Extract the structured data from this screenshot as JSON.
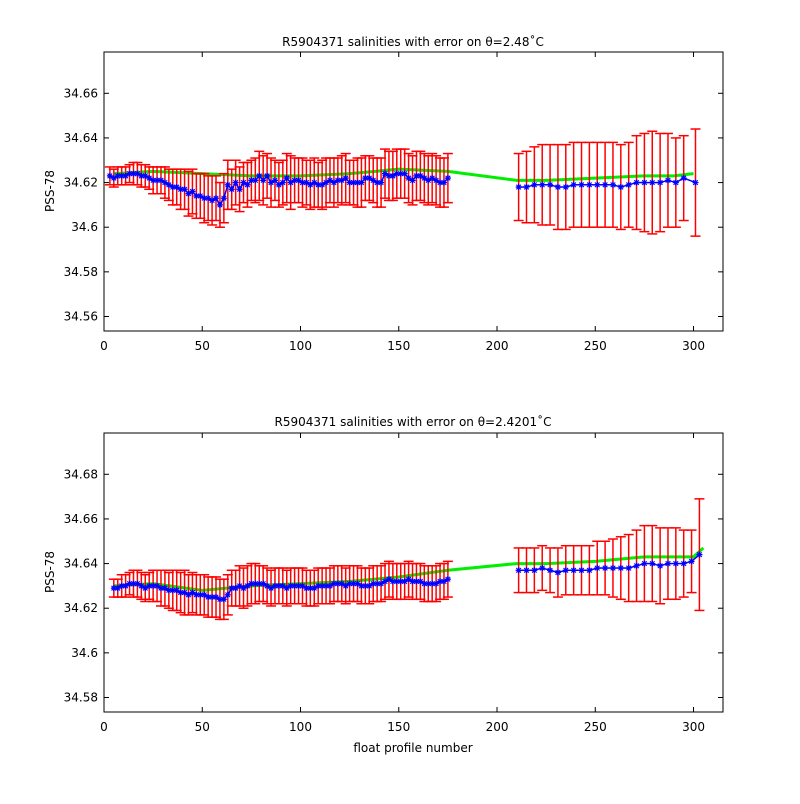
{
  "chart_data": [
    {
      "type": "scatter",
      "title": "R5904371 salinities with error on θ=2.48˚C",
      "xlabel": "",
      "ylabel": "PSS-78",
      "xlim": [
        0,
        315
      ],
      "ylim": [
        34.5535,
        34.6785
      ],
      "xticks": [
        0,
        50,
        100,
        150,
        200,
        250,
        300
      ],
      "xtick_labels": [
        "0",
        "50",
        "100",
        "150",
        "200",
        "250",
        "300"
      ],
      "yticks": [
        34.56,
        34.58,
        34.6,
        34.62,
        34.64,
        34.66
      ],
      "ytick_labels": [
        "34.56",
        "34.58",
        "34.6",
        "34.62",
        "34.64",
        "34.66"
      ],
      "grid": false,
      "colors": {
        "errorbar": "#ff0000",
        "calibrated": "#0000ff",
        "mapped": "#00ee00"
      },
      "series": [
        {
          "role": "mapped",
          "x": [
            5,
            25,
            50,
            75,
            100,
            125,
            150,
            175,
            210,
            225,
            250,
            275,
            290,
            300
          ],
          "values": [
            34.624,
            34.625,
            34.624,
            34.623,
            34.623,
            34.624,
            34.626,
            34.625,
            34.621,
            34.621,
            34.622,
            34.623,
            34.623,
            34.624
          ]
        },
        {
          "role": "calibrated-with-error",
          "x": [
            3,
            5,
            7,
            9,
            11,
            13,
            15,
            17,
            19,
            21,
            23,
            25,
            27,
            29,
            31,
            33,
            35,
            37,
            39,
            41,
            43,
            45,
            47,
            49,
            51,
            53,
            55,
            57,
            59,
            61,
            63,
            65,
            67,
            69,
            71,
            73,
            75,
            77,
            79,
            81,
            83,
            85,
            87,
            89,
            91,
            93,
            95,
            97,
            99,
            101,
            103,
            105,
            107,
            109,
            111,
            113,
            115,
            117,
            119,
            121,
            123,
            125,
            127,
            129,
            131,
            133,
            135,
            137,
            139,
            141,
            143,
            145,
            147,
            149,
            151,
            153,
            155,
            157,
            159,
            161,
            163,
            165,
            167,
            169,
            171,
            173,
            175,
            211,
            215,
            219,
            223,
            227,
            231,
            235,
            239,
            243,
            247,
            251,
            255,
            259,
            263,
            267,
            271,
            275,
            279,
            283,
            287,
            291,
            295,
            301
          ],
          "values": [
            34.623,
            34.622,
            34.623,
            34.623,
            34.623,
            34.624,
            34.624,
            34.624,
            34.623,
            34.623,
            34.622,
            34.621,
            34.621,
            34.621,
            34.62,
            34.619,
            34.618,
            34.618,
            34.617,
            34.617,
            34.615,
            34.616,
            34.614,
            34.614,
            34.613,
            34.613,
            34.612,
            34.613,
            34.61,
            34.613,
            34.619,
            34.617,
            34.62,
            34.617,
            34.62,
            34.619,
            34.621,
            34.621,
            34.623,
            34.621,
            34.623,
            34.62,
            34.621,
            34.619,
            34.62,
            34.622,
            34.62,
            34.621,
            34.621,
            34.62,
            34.62,
            34.619,
            34.62,
            34.619,
            34.619,
            34.62,
            34.621,
            34.62,
            34.621,
            34.621,
            34.622,
            34.62,
            34.62,
            34.62,
            34.62,
            34.622,
            34.622,
            34.621,
            34.62,
            34.62,
            34.624,
            34.623,
            34.623,
            34.624,
            34.624,
            34.624,
            34.622,
            34.621,
            34.623,
            34.623,
            34.622,
            34.621,
            34.622,
            34.621,
            34.62,
            34.62,
            34.622,
            34.618,
            34.618,
            34.619,
            34.619,
            34.619,
            34.618,
            34.618,
            34.619,
            34.619,
            34.619,
            34.619,
            34.619,
            34.619,
            34.618,
            34.619,
            34.62,
            34.62,
            34.62,
            34.62,
            34.621,
            34.62,
            34.622,
            34.62
          ],
          "error": [
            0.004,
            0.004,
            0.004,
            0.004,
            0.004,
            0.004,
            0.005,
            0.005,
            0.005,
            0.005,
            0.005,
            0.006,
            0.006,
            0.006,
            0.007,
            0.007,
            0.008,
            0.008,
            0.009,
            0.009,
            0.01,
            0.01,
            0.01,
            0.01,
            0.011,
            0.01,
            0.011,
            0.01,
            0.01,
            0.011,
            0.011,
            0.009,
            0.01,
            0.01,
            0.009,
            0.01,
            0.009,
            0.01,
            0.011,
            0.011,
            0.01,
            0.011,
            0.009,
            0.01,
            0.01,
            0.011,
            0.012,
            0.01,
            0.01,
            0.011,
            0.01,
            0.011,
            0.011,
            0.01,
            0.011,
            0.011,
            0.01,
            0.011,
            0.01,
            0.011,
            0.011,
            0.01,
            0.01,
            0.011,
            0.011,
            0.01,
            0.01,
            0.01,
            0.011,
            0.011,
            0.011,
            0.011,
            0.011,
            0.011,
            0.011,
            0.011,
            0.011,
            0.011,
            0.011,
            0.011,
            0.011,
            0.011,
            0.011,
            0.011,
            0.011,
            0.011,
            0.011,
            0.015,
            0.016,
            0.017,
            0.018,
            0.018,
            0.019,
            0.019,
            0.019,
            0.019,
            0.019,
            0.019,
            0.019,
            0.019,
            0.019,
            0.019,
            0.021,
            0.022,
            0.023,
            0.022,
            0.021,
            0.02,
            0.019,
            0.024
          ]
        }
      ]
    },
    {
      "type": "scatter",
      "title": "R5904371 salinities with error on θ=2.4201˚C",
      "xlabel": "float profile number",
      "ylabel": "PSS-78",
      "xlim": [
        0,
        315
      ],
      "ylim": [
        34.5735,
        34.6985
      ],
      "xticks": [
        0,
        50,
        100,
        150,
        200,
        250,
        300
      ],
      "xtick_labels": [
        "0",
        "50",
        "100",
        "150",
        "200",
        "250",
        "300"
      ],
      "yticks": [
        34.58,
        34.6,
        34.62,
        34.64,
        34.66,
        34.68
      ],
      "ytick_labels": [
        "34.58",
        "34.6",
        "34.62",
        "34.64",
        "34.66",
        "34.68"
      ],
      "grid": false,
      "colors": {
        "errorbar": "#ff0000",
        "calibrated": "#0000ff",
        "mapped": "#00ee00"
      },
      "series": [
        {
          "role": "mapped",
          "x": [
            5,
            25,
            50,
            75,
            100,
            125,
            150,
            175,
            210,
            225,
            250,
            275,
            290,
            300,
            305
          ],
          "values": [
            34.63,
            34.631,
            34.628,
            34.63,
            34.631,
            34.632,
            34.634,
            34.637,
            34.64,
            34.64,
            34.641,
            34.643,
            34.643,
            34.643,
            34.647
          ]
        },
        {
          "role": "calibrated-with-error",
          "x": [
            5,
            7,
            9,
            11,
            13,
            15,
            17,
            19,
            21,
            23,
            25,
            27,
            29,
            31,
            33,
            35,
            37,
            39,
            41,
            43,
            45,
            47,
            49,
            51,
            53,
            55,
            57,
            59,
            61,
            63,
            65,
            67,
            69,
            71,
            73,
            75,
            77,
            79,
            81,
            83,
            85,
            87,
            89,
            91,
            93,
            95,
            97,
            99,
            101,
            103,
            105,
            107,
            109,
            111,
            113,
            115,
            117,
            119,
            121,
            123,
            125,
            127,
            129,
            131,
            133,
            135,
            137,
            139,
            141,
            143,
            145,
            147,
            149,
            151,
            153,
            155,
            157,
            159,
            161,
            163,
            165,
            167,
            169,
            171,
            173,
            175,
            211,
            215,
            219,
            223,
            227,
            231,
            235,
            239,
            243,
            247,
            251,
            255,
            259,
            263,
            267,
            271,
            275,
            279,
            283,
            287,
            291,
            295,
            299,
            303
          ],
          "values": [
            34.629,
            34.629,
            34.63,
            34.63,
            34.631,
            34.631,
            34.631,
            34.63,
            34.629,
            34.63,
            34.63,
            34.63,
            34.629,
            34.629,
            34.628,
            34.628,
            34.628,
            34.627,
            34.627,
            34.626,
            34.627,
            34.626,
            34.626,
            34.626,
            34.625,
            34.625,
            34.625,
            34.624,
            34.624,
            34.626,
            34.629,
            34.629,
            34.63,
            34.629,
            34.63,
            34.631,
            34.631,
            34.631,
            34.631,
            34.63,
            34.629,
            34.63,
            34.63,
            34.63,
            34.629,
            34.63,
            34.63,
            34.63,
            34.63,
            34.629,
            34.629,
            34.629,
            34.63,
            34.63,
            34.63,
            34.63,
            34.631,
            34.631,
            34.631,
            34.63,
            34.631,
            34.631,
            34.631,
            34.63,
            34.63,
            34.63,
            34.631,
            34.631,
            34.631,
            34.632,
            34.633,
            34.632,
            34.632,
            34.632,
            34.632,
            34.633,
            34.632,
            34.632,
            34.632,
            34.631,
            34.631,
            34.631,
            34.631,
            34.632,
            34.632,
            34.633,
            34.637,
            34.637,
            34.637,
            34.638,
            34.637,
            34.636,
            34.637,
            34.637,
            34.637,
            34.637,
            34.638,
            34.638,
            34.638,
            34.638,
            34.638,
            34.639,
            34.64,
            34.64,
            34.639,
            34.64,
            34.64,
            34.64,
            34.641,
            34.644
          ],
          "error": [
            0.004,
            0.004,
            0.005,
            0.005,
            0.005,
            0.006,
            0.006,
            0.006,
            0.006,
            0.006,
            0.007,
            0.007,
            0.008,
            0.008,
            0.008,
            0.009,
            0.009,
            0.009,
            0.01,
            0.009,
            0.009,
            0.009,
            0.009,
            0.009,
            0.009,
            0.009,
            0.009,
            0.009,
            0.009,
            0.009,
            0.008,
            0.008,
            0.009,
            0.009,
            0.009,
            0.009,
            0.009,
            0.008,
            0.008,
            0.008,
            0.008,
            0.008,
            0.008,
            0.008,
            0.008,
            0.008,
            0.008,
            0.008,
            0.008,
            0.008,
            0.008,
            0.008,
            0.008,
            0.008,
            0.008,
            0.008,
            0.008,
            0.008,
            0.008,
            0.008,
            0.008,
            0.008,
            0.008,
            0.008,
            0.008,
            0.008,
            0.008,
            0.008,
            0.008,
            0.008,
            0.008,
            0.008,
            0.008,
            0.008,
            0.008,
            0.008,
            0.008,
            0.008,
            0.008,
            0.008,
            0.008,
            0.008,
            0.008,
            0.008,
            0.008,
            0.008,
            0.01,
            0.01,
            0.01,
            0.01,
            0.01,
            0.011,
            0.011,
            0.011,
            0.011,
            0.011,
            0.012,
            0.012,
            0.013,
            0.014,
            0.015,
            0.016,
            0.017,
            0.017,
            0.017,
            0.016,
            0.016,
            0.015,
            0.014,
            0.025
          ]
        }
      ]
    }
  ]
}
